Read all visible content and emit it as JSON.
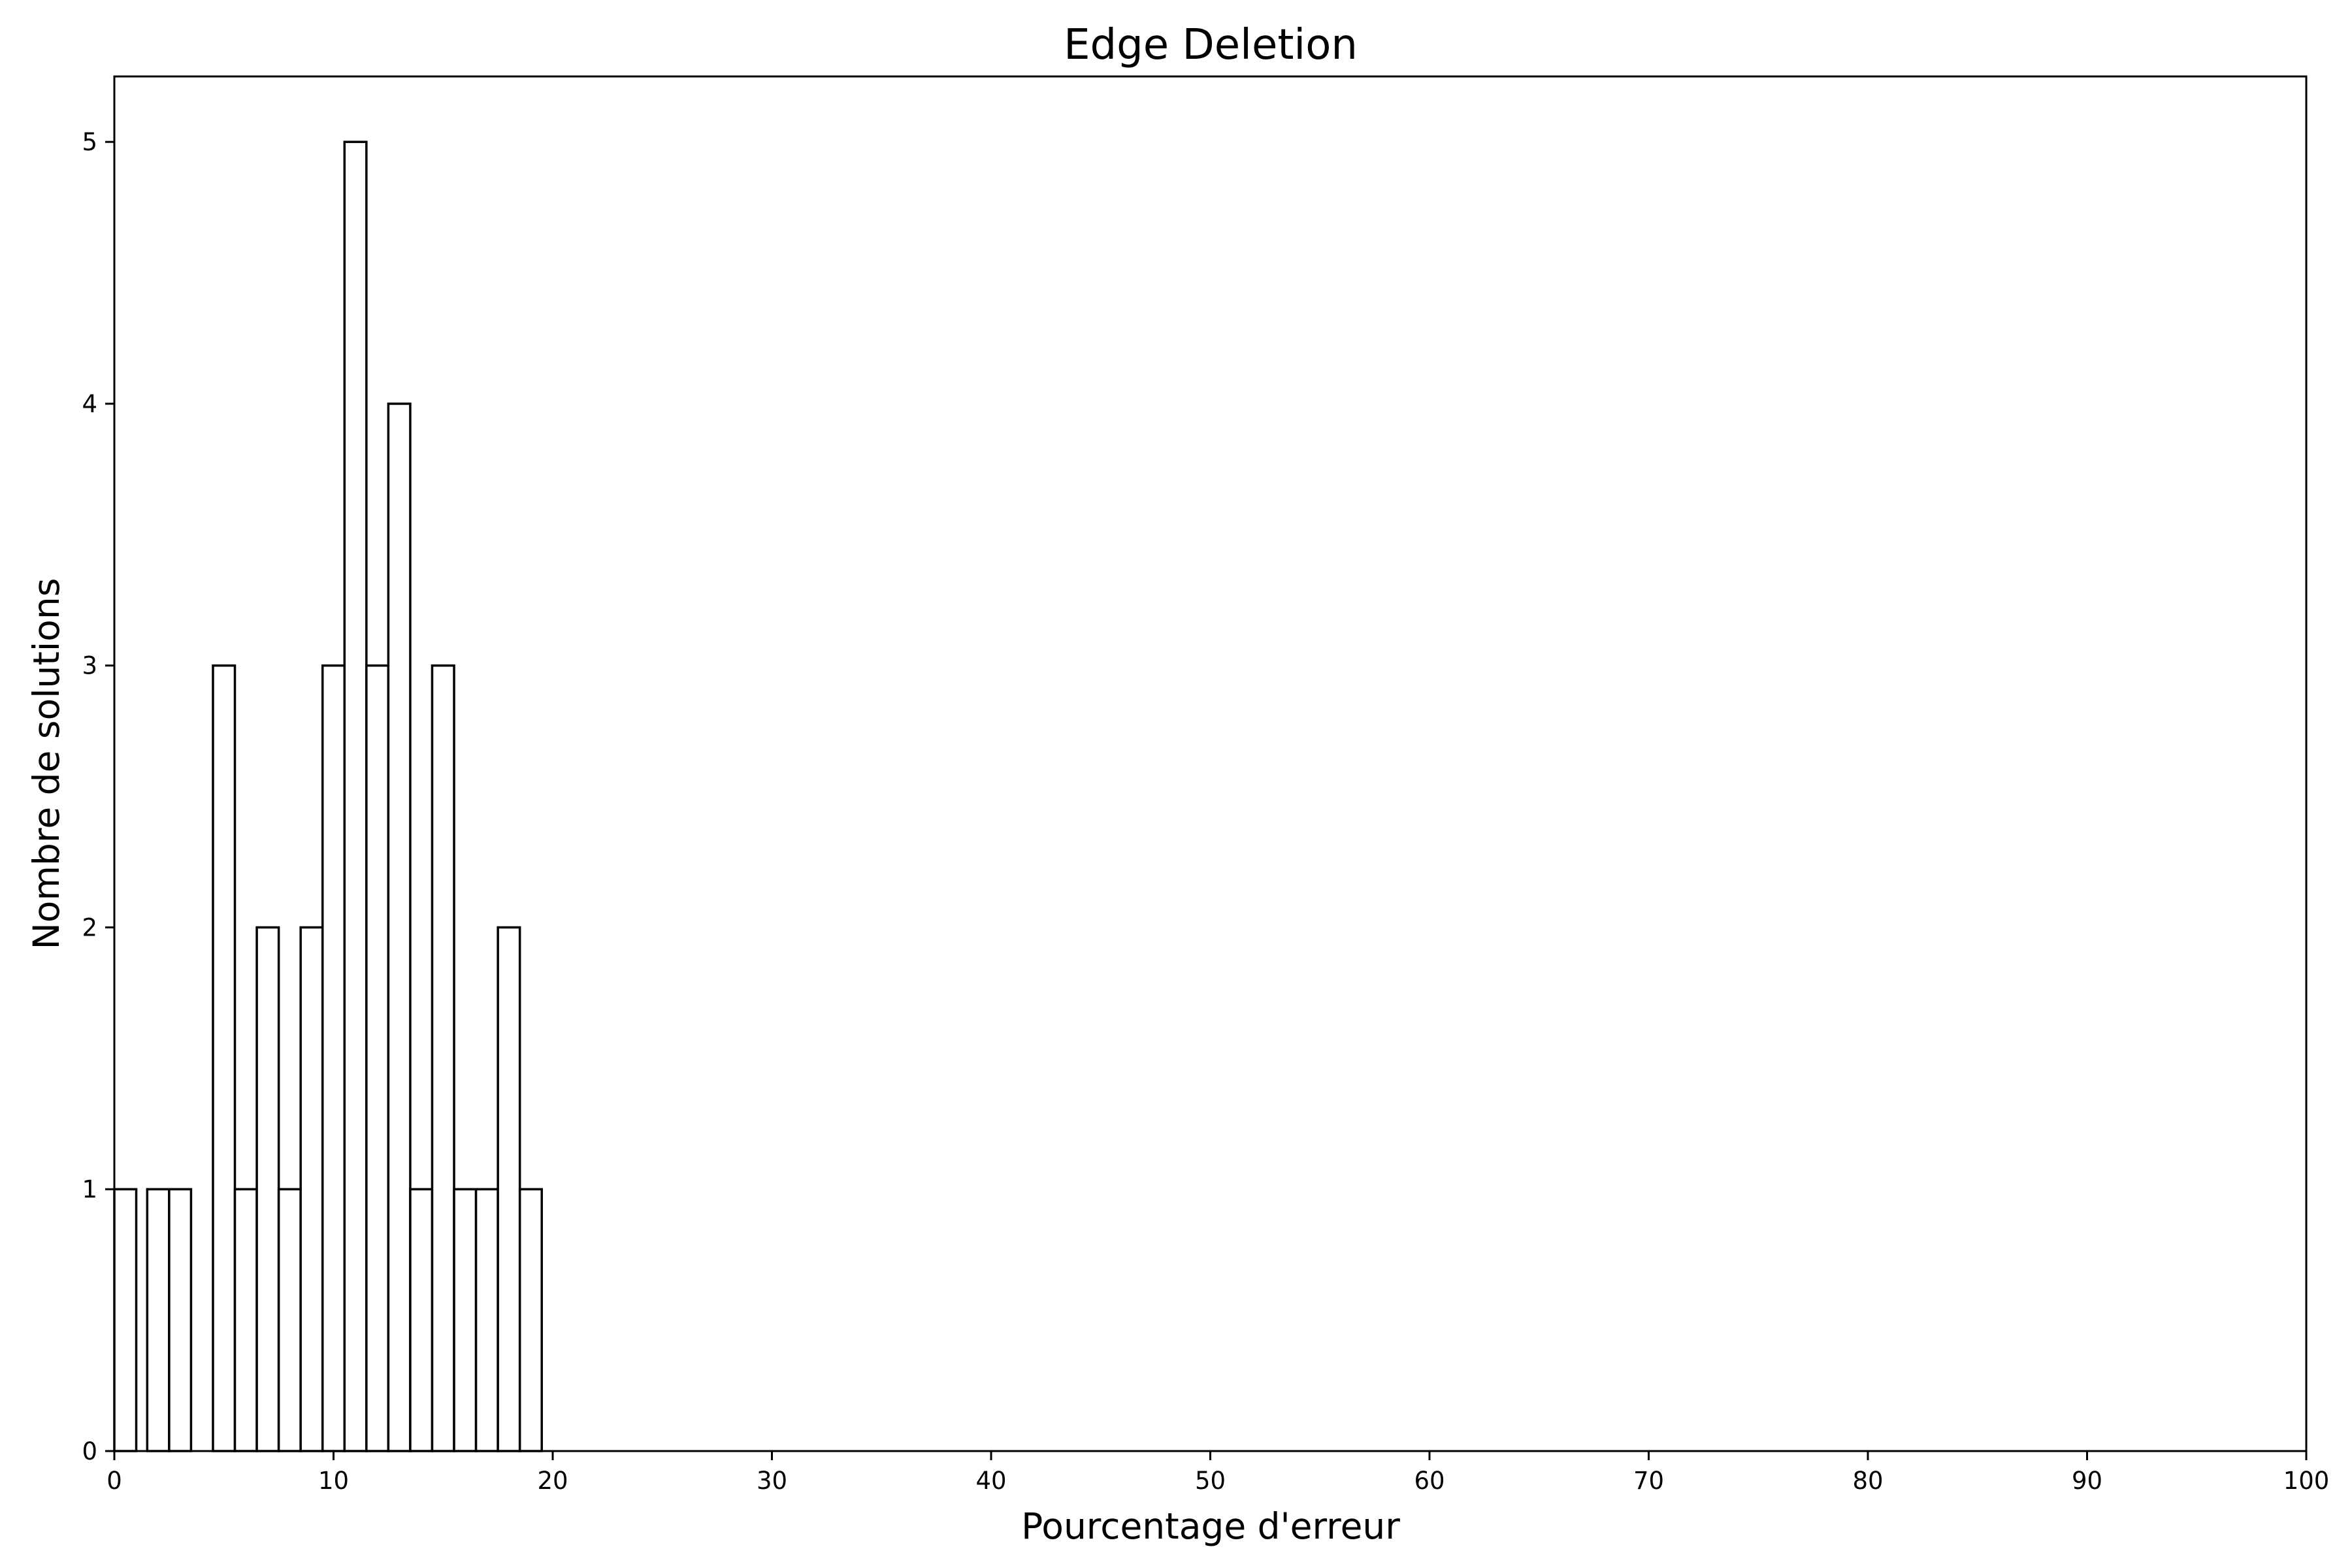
{
  "chart_data": {
    "type": "bar",
    "title": "Edge Deletion",
    "xlabel": "Pourcentage d'erreur",
    "ylabel": "Nombre de solutions",
    "xlim": [
      0,
      100
    ],
    "ylim": [
      0,
      5.25
    ],
    "xticks": [
      0,
      10,
      20,
      30,
      40,
      50,
      60,
      70,
      80,
      90,
      100
    ],
    "yticks": [
      0,
      1,
      2,
      3,
      4,
      5
    ],
    "bin_width": 1,
    "bins": [
      {
        "x": 0,
        "value": 1
      },
      {
        "x": 1.5,
        "value": 1
      },
      {
        "x": 2.5,
        "value": 1
      },
      {
        "x": 4.5,
        "value": 3
      },
      {
        "x": 5.5,
        "value": 1
      },
      {
        "x": 6.5,
        "value": 2
      },
      {
        "x": 7.5,
        "value": 1
      },
      {
        "x": 8.5,
        "value": 2
      },
      {
        "x": 9.5,
        "value": 3
      },
      {
        "x": 10.5,
        "value": 5
      },
      {
        "x": 11.5,
        "value": 3
      },
      {
        "x": 12.5,
        "value": 4
      },
      {
        "x": 13.5,
        "value": 1
      },
      {
        "x": 14.5,
        "value": 3
      },
      {
        "x": 15.5,
        "value": 1
      },
      {
        "x": 16.5,
        "value": 1
      },
      {
        "x": 17.5,
        "value": 2
      },
      {
        "x": 18.5,
        "value": 1
      }
    ],
    "grid": false,
    "bar_fill": "#ffffff",
    "bar_edge": "#000000"
  }
}
